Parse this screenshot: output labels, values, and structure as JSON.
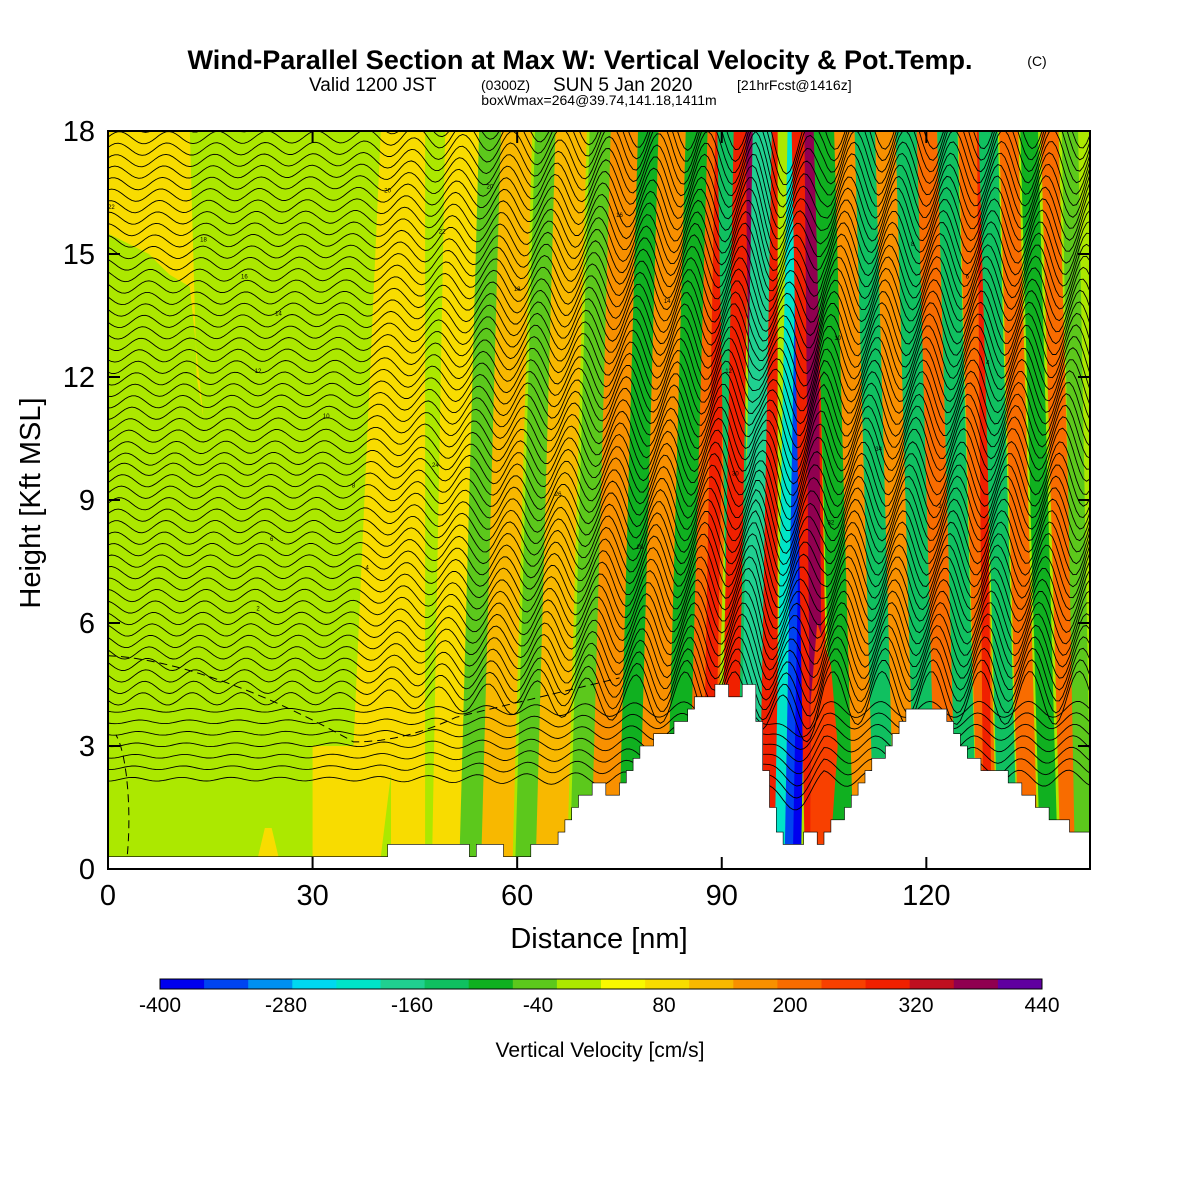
{
  "title": {
    "main": "Wind-Parallel Section at Max W: Vertical Velocity & Pot.Temp.",
    "copyright": "(C)",
    "valid_prefix": "Valid 1200 JST",
    "valid_z": "(0300Z)",
    "valid_date": "SUN 5 Jan 2020",
    "valid_fcst": "[21hrFcst@1416z]",
    "boxinfo": "boxWmax=264@39.74,141.18,1411m"
  },
  "chart_data": {
    "type": "heatmap",
    "title": "Wind-Parallel Section at Max W: Vertical Velocity & Pot.Temp.",
    "xlabel": "Distance [nm]",
    "ylabel": "Height [Kft MSL]",
    "xlim": [
      0,
      144
    ],
    "ylim": [
      0,
      18
    ],
    "x_ticks": [
      0,
      30,
      60,
      90,
      120
    ],
    "y_ticks": [
      0,
      3,
      6,
      9,
      12,
      15,
      18
    ],
    "grid": false,
    "colorbar": {
      "label": "Vertical Velocity [cm/s]",
      "min": -400,
      "max": 440,
      "step": 40,
      "tick_labels": [
        "-400",
        "-280",
        "-160",
        "-40",
        "80",
        "200",
        "320",
        "440"
      ],
      "colors": [
        "#0000ee",
        "#0044f0",
        "#0090f0",
        "#00d8f0",
        "#00e4c8",
        "#20d090",
        "#10c060",
        "#10b020",
        "#5cc81c",
        "#ace800",
        "#f8f800",
        "#f8dc00",
        "#f8b800",
        "#f89000",
        "#f86c00",
        "#f84000",
        "#f02000",
        "#c01020",
        "#900050",
        "#6000a0"
      ]
    },
    "terrain": {
      "x": [
        0,
        40,
        41,
        43,
        45,
        47,
        49,
        51,
        53,
        54,
        56,
        58,
        60,
        62,
        64,
        66,
        67,
        68,
        69,
        70,
        71,
        72,
        73,
        74,
        75,
        76,
        77,
        78,
        79,
        80,
        81,
        82,
        83,
        84,
        85,
        86,
        87,
        88,
        89,
        90,
        91,
        92,
        93,
        94,
        95,
        96,
        97,
        98,
        99,
        100,
        101,
        102,
        103,
        104,
        105,
        106,
        107,
        108,
        109,
        110,
        111,
        112,
        113,
        114,
        115,
        116,
        117,
        118,
        119,
        120,
        121,
        122,
        123,
        124,
        125,
        126,
        127,
        128,
        129,
        130,
        131,
        132,
        133,
        134,
        135,
        136,
        137,
        138,
        139,
        140,
        141,
        142,
        143,
        144
      ],
      "y": [
        0.3,
        0.3,
        0.6,
        0.6,
        0.6,
        0.6,
        0.6,
        0.6,
        0.3,
        0.6,
        0.6,
        0.3,
        0.3,
        0.6,
        0.6,
        0.9,
        1.2,
        1.5,
        1.8,
        1.8,
        2.1,
        2.1,
        1.8,
        1.8,
        2.1,
        2.4,
        2.7,
        3.0,
        3.0,
        3.3,
        3.3,
        3.3,
        3.6,
        3.6,
        3.9,
        4.2,
        4.2,
        4.2,
        4.5,
        4.5,
        4.2,
        4.2,
        4.5,
        4.5,
        3.6,
        2.4,
        1.5,
        0.9,
        0.6,
        0.6,
        0.6,
        0.9,
        0.9,
        0.6,
        0.9,
        1.2,
        1.2,
        1.5,
        1.8,
        2.1,
        2.4,
        2.7,
        2.7,
        3.0,
        3.3,
        3.6,
        3.9,
        3.9,
        3.9,
        3.9,
        3.9,
        3.9,
        3.6,
        3.3,
        3.0,
        2.7,
        2.7,
        2.4,
        2.4,
        2.4,
        2.4,
        2.1,
        2.1,
        1.8,
        1.8,
        1.5,
        1.5,
        1.2,
        1.2,
        1.2,
        0.9,
        0.9,
        0.9,
        0.9
      ]
    },
    "contours": {
      "name": "Pot.Temp.",
      "labels": [
        "2",
        "4",
        "6",
        "8",
        "10",
        "12",
        "14",
        "16",
        "18",
        "20",
        "22",
        "24",
        "26",
        "28",
        "30",
        "32",
        "34"
      ]
    }
  }
}
